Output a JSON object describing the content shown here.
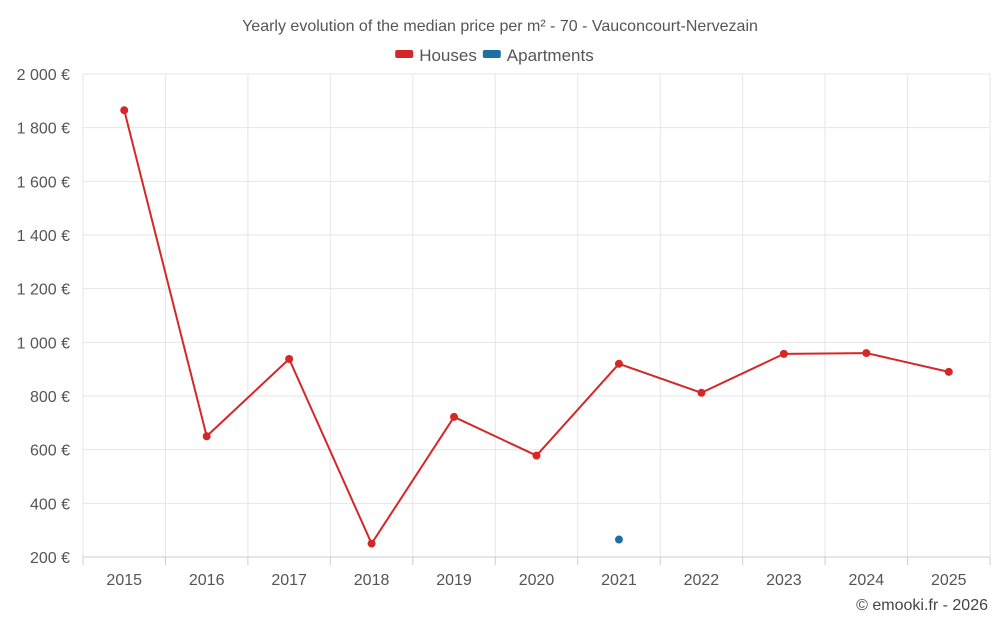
{
  "chart_data": {
    "type": "line",
    "title": "Yearly evolution of the median price per m² - 70 - Vauconcourt-Nervezain",
    "categories": [
      "2015",
      "2016",
      "2017",
      "2018",
      "2019",
      "2020",
      "2021",
      "2022",
      "2023",
      "2024",
      "2025"
    ],
    "y_tick_labels": [
      "200 €",
      "400 €",
      "600 €",
      "800 €",
      "1 000 €",
      "1 200 €",
      "1 400 €",
      "1 600 €",
      "1 800 €",
      "2 000 €"
    ],
    "y_ticks": [
      200,
      400,
      600,
      800,
      1000,
      1200,
      1400,
      1600,
      1800,
      2000
    ],
    "ylim": [
      200,
      2000
    ],
    "grid": true,
    "legend_position": "top-center",
    "series": [
      {
        "name": "Houses",
        "color": "#d62728",
        "values": [
          1865,
          650,
          938,
          250,
          722,
          578,
          920,
          812,
          957,
          960,
          890
        ]
      },
      {
        "name": "Apartments",
        "color": "#1f6fa3",
        "values": [
          null,
          null,
          null,
          null,
          null,
          null,
          265,
          null,
          null,
          null,
          null
        ]
      }
    ],
    "credit": "© emooki.fr - 2026"
  }
}
